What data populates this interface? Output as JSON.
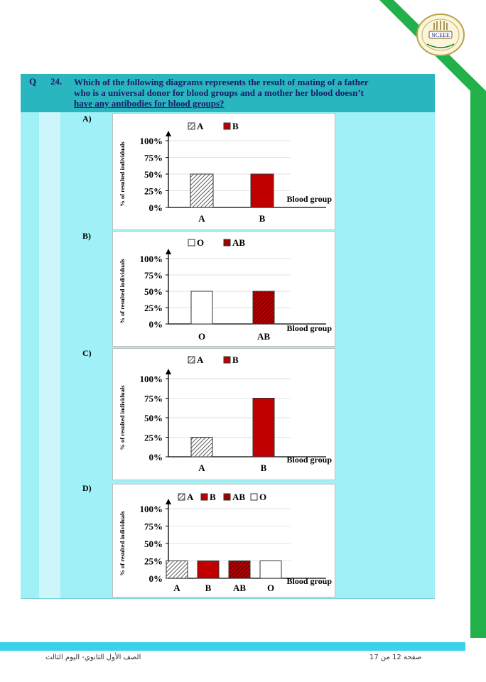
{
  "header": {
    "logo_text": "NCEEE",
    "colors": {
      "accent_green": "#22b04a",
      "question_bar": "#2ab6be",
      "row_bg": "#9ff1f7"
    }
  },
  "question": {
    "label": "Q",
    "number": "24.",
    "line1": "Which of the following diagrams represents the result of mating of a father",
    "line2": "who is a universal donor for blood groups and a mother her blood doesn’t",
    "line3": "have any antibodies for blood groups?"
  },
  "options": [
    {
      "label": "A)"
    },
    {
      "label": "B)"
    },
    {
      "label": "C)"
    },
    {
      "label": "D)"
    }
  ],
  "chart_data": [
    {
      "type": "bar",
      "ylabel": "% of resulted individuals",
      "xlabel": "Blood group",
      "ticks": [
        "100%",
        "75%",
        "50%",
        "25%",
        "0%"
      ],
      "ylim": [
        0,
        100
      ],
      "categories": [
        "A",
        "B"
      ],
      "legend": [
        "A",
        "B"
      ],
      "values": [
        50,
        50
      ],
      "fills": [
        "hatch",
        "red"
      ]
    },
    {
      "type": "bar",
      "ylabel": "% of resulted individuals",
      "xlabel": "Blood group",
      "ticks": [
        "100%",
        "75%",
        "50%",
        "25%",
        "0%"
      ],
      "ylim": [
        0,
        100
      ],
      "categories": [
        "O",
        "AB"
      ],
      "legend": [
        "O",
        "AB"
      ],
      "values": [
        50,
        50
      ],
      "fills": [
        "white",
        "redhatch"
      ]
    },
    {
      "type": "bar",
      "ylabel": "% of resulted individuals",
      "xlabel": "Blood group",
      "ticks": [
        "100%",
        "75%",
        "50%",
        "25%",
        "0%"
      ],
      "ylim": [
        0,
        100
      ],
      "categories": [
        "A",
        "B"
      ],
      "legend": [
        "A",
        "B"
      ],
      "values": [
        25,
        75
      ],
      "fills": [
        "hatch",
        "red"
      ]
    },
    {
      "type": "bar",
      "ylabel": "% of resulted individuals",
      "xlabel": "Blood group",
      "ticks": [
        "100%",
        "75%",
        "50%",
        "25%",
        "0%"
      ],
      "ylim": [
        0,
        100
      ],
      "categories": [
        "A",
        "B",
        "AB",
        "O"
      ],
      "legend": [
        "A",
        "B",
        "AB",
        "O"
      ],
      "values": [
        25,
        25,
        25,
        25
      ],
      "fills": [
        "hatch",
        "red",
        "redhatch",
        "white"
      ]
    }
  ],
  "footer": {
    "left_text": "الصف الأول الثانوي- اليوم الثالث",
    "right_text": "صفحة 12 من 17"
  }
}
